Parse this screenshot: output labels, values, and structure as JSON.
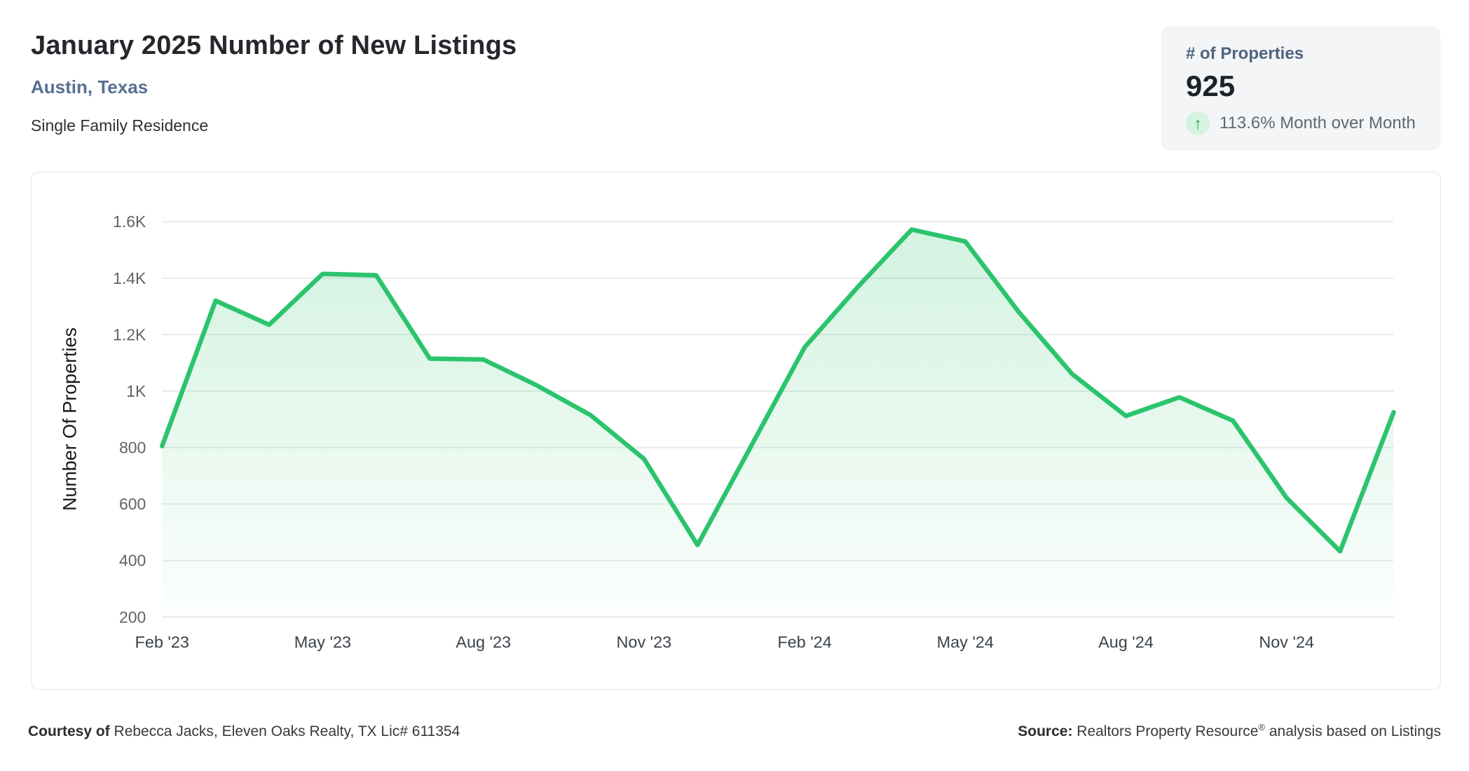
{
  "header": {
    "title": "January 2025 Number of New Listings",
    "subtitle": "Austin, Texas",
    "property_type": "Single Family Residence"
  },
  "stat_card": {
    "label": "# of Properties",
    "value": "925",
    "up_arrow": "↑",
    "change_text": "113.6% Month over Month",
    "arrow_color": "#1f9f58",
    "arrow_bg": "#d5f3e0"
  },
  "chart_data": {
    "type": "area",
    "title": "January 2025 Number of New Listings",
    "x": [
      "Feb '23",
      "Mar '23",
      "Apr '23",
      "May '23",
      "Jun '23",
      "Jul '23",
      "Aug '23",
      "Sep '23",
      "Oct '23",
      "Nov '23",
      "Dec '23",
      "Jan '24",
      "Feb '24",
      "Mar '24",
      "Apr '24",
      "May '24",
      "Jun '24",
      "Jul '24",
      "Aug '24",
      "Sep '24",
      "Oct '24",
      "Nov '24",
      "Dec '24",
      "Jan '25"
    ],
    "series": [
      {
        "name": "Number Of Properties",
        "values": [
          805,
          1320,
          1235,
          1415,
          1410,
          1115,
          1112,
          1020,
          915,
          760,
          455,
          805,
          1155,
          1370,
          1572,
          1530,
          1280,
          1060,
          912,
          978,
          895,
          622,
          433,
          925
        ]
      }
    ],
    "xlabel": "",
    "ylabel": "Number Of Properties",
    "ylim": [
      200,
      1600
    ],
    "ytick_values": [
      200,
      400,
      600,
      800,
      1000,
      1200,
      1400,
      1600
    ],
    "ytick_labels": [
      "200",
      "400",
      "600",
      "800",
      "1K",
      "1.2K",
      "1.4K",
      "1.6K"
    ],
    "xtick_every": 3,
    "grid": "horizontal",
    "legend": "none",
    "line_color": "#2bc46d",
    "grid_color": "#e9eaec",
    "ylabel_color": "#17191d",
    "ytick_color": "#5f6469",
    "xtick_color": "#3c434b",
    "fill_top": "rgba(46,196,110,0.21)",
    "fill_bottom": "rgba(46,196,110,0.015)"
  },
  "footer": {
    "courtesy_label": "Courtesy of",
    "courtesy_text": " Rebecca Jacks, Eleven Oaks Realty, TX Lic# 611354",
    "source_label": "Source:",
    "source_text_pre": " Realtors Property Resource",
    "source_reg": "®",
    "source_text_post": " analysis based on Listings"
  }
}
